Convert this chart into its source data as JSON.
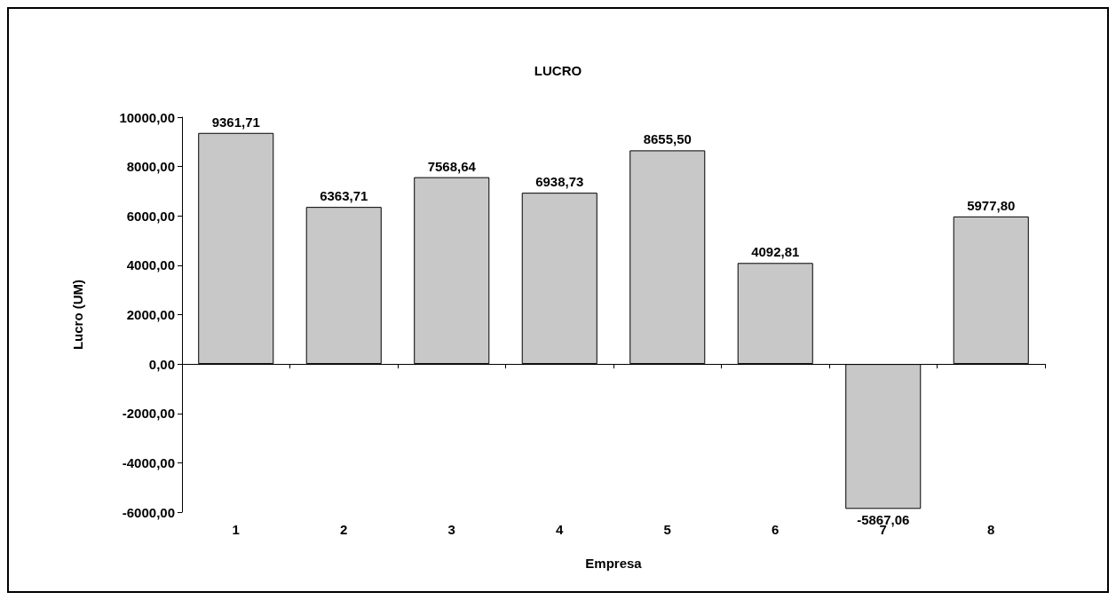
{
  "chart_data": {
    "type": "bar",
    "title": "LUCRO",
    "xlabel": "Empresa",
    "ylabel": "Lucro (UM)",
    "categories": [
      "1",
      "2",
      "3",
      "4",
      "5",
      "6",
      "7",
      "8"
    ],
    "values": [
      9361.71,
      6363.71,
      7568.64,
      6938.73,
      8655.5,
      4092.81,
      -5867.06,
      5977.8
    ],
    "value_labels": [
      "9361,71",
      "6363,71",
      "7568,64",
      "6938,73",
      "8655,50",
      "4092,81",
      "-5867,06",
      "5977,80"
    ],
    "color": "#c8c8c8",
    "ylim": [
      -6000,
      10000
    ],
    "yticks": [
      {
        "value": -6000,
        "label": "-6000,00"
      },
      {
        "value": -4000,
        "label": "-4000,00"
      },
      {
        "value": -2000,
        "label": "-2000,00"
      },
      {
        "value": 0,
        "label": "0,00"
      },
      {
        "value": 2000,
        "label": "2000,00"
      },
      {
        "value": 4000,
        "label": "4000,00"
      },
      {
        "value": 6000,
        "label": "6000,00"
      },
      {
        "value": 8000,
        "label": "8000,00"
      },
      {
        "value": 10000,
        "label": "10000,00"
      }
    ],
    "tick_labels": true
  }
}
